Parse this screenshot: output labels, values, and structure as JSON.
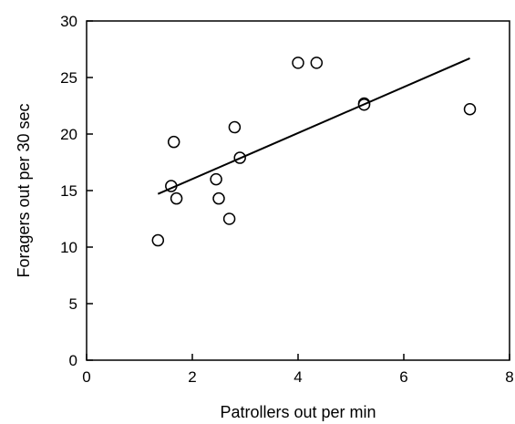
{
  "chart_data": {
    "type": "scatter",
    "title": "",
    "xlabel": "Patrollers out per min",
    "ylabel": "Foragers out per 30 sec",
    "xlim": [
      0,
      8
    ],
    "ylim": [
      0,
      30
    ],
    "xticks": [
      0,
      2,
      4,
      6,
      8
    ],
    "yticks": [
      0,
      5,
      10,
      15,
      20,
      25,
      30
    ],
    "grid": false,
    "legend": "none",
    "colors": {
      "axis": "#000000",
      "marker_stroke": "#000000",
      "marker_fill": "#ffffff",
      "line": "#000000"
    },
    "series": [
      {
        "points": [
          {
            "x": 1.35,
            "y": 10.6
          },
          {
            "x": 1.6,
            "y": 15.4
          },
          {
            "x": 1.65,
            "y": 19.3
          },
          {
            "x": 1.7,
            "y": 14.3
          },
          {
            "x": 2.45,
            "y": 16.0
          },
          {
            "x": 2.5,
            "y": 14.3
          },
          {
            "x": 2.7,
            "y": 12.5
          },
          {
            "x": 2.8,
            "y": 20.6
          },
          {
            "x": 2.9,
            "y": 17.9
          },
          {
            "x": 4.0,
            "y": 26.3
          },
          {
            "x": 4.35,
            "y": 26.3
          },
          {
            "x": 5.25,
            "y": 22.7
          },
          {
            "x": 5.25,
            "y": 22.6
          },
          {
            "x": 7.25,
            "y": 22.2
          }
        ]
      }
    ],
    "trendline": {
      "x": [
        1.35,
        7.25
      ],
      "y": [
        14.7,
        26.7
      ]
    }
  }
}
